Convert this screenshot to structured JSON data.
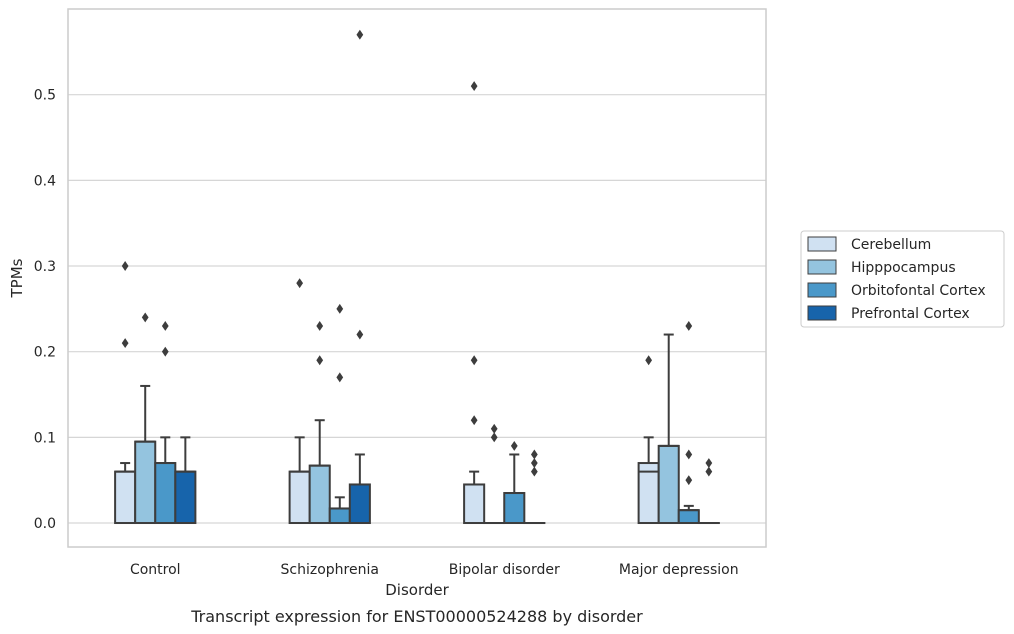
{
  "chart_data": {
    "type": "bar",
    "xlabel": "Disorder",
    "ylabel": "TPMs",
    "caption": "Transcript expression for ENST00000524288 by disorder",
    "categories": [
      "Control",
      "Schizophrenia",
      "Bipolar disorder",
      "Major depression"
    ],
    "ylim": [
      -0.028,
      0.6
    ],
    "yticks": [
      0.0,
      0.1,
      0.2,
      0.3,
      0.4,
      0.5
    ],
    "ytick_labels": [
      "0.0",
      "0.1",
      "0.2",
      "0.3",
      "0.4",
      "0.5"
    ],
    "grid": "horizontal",
    "legend_position": "right",
    "series": [
      {
        "name": "Cerebellum",
        "color": "#d0e1f2",
        "boxes": [
          {
            "q1": 0.0,
            "median": 0.06,
            "q3": 0.06,
            "whisker_low": 0.0,
            "whisker_high": 0.07,
            "outliers": [
              0.21,
              0.3
            ]
          },
          {
            "q1": 0.0,
            "median": 0.06,
            "q3": 0.06,
            "whisker_low": 0.0,
            "whisker_high": 0.1,
            "outliers": [
              0.28
            ]
          },
          {
            "q1": 0.0,
            "median": 0.045,
            "q3": 0.045,
            "whisker_low": 0.0,
            "whisker_high": 0.06,
            "outliers": [
              0.12,
              0.19,
              0.51
            ]
          },
          {
            "q1": 0.0,
            "median": 0.06,
            "q3": 0.07,
            "whisker_low": 0.0,
            "whisker_high": 0.1,
            "outliers": [
              0.19
            ]
          }
        ]
      },
      {
        "name": "Hipppocampus",
        "color": "#94c4df",
        "boxes": [
          {
            "q1": 0.0,
            "median": 0.095,
            "q3": 0.095,
            "whisker_low": 0.0,
            "whisker_high": 0.16,
            "outliers": [
              0.24
            ]
          },
          {
            "q1": 0.0,
            "median": 0.067,
            "q3": 0.067,
            "whisker_low": 0.0,
            "whisker_high": 0.12,
            "outliers": [
              0.19,
              0.23
            ]
          },
          {
            "q1": 0.0,
            "median": 0.0,
            "q3": 0.0,
            "whisker_low": 0.0,
            "whisker_high": 0.0,
            "outliers": [
              0.1,
              0.11
            ]
          },
          {
            "q1": 0.0,
            "median": 0.09,
            "q3": 0.09,
            "whisker_low": 0.0,
            "whisker_high": 0.22,
            "outliers": []
          }
        ]
      },
      {
        "name": "Orbitofontal Cortex",
        "color": "#4a98c9",
        "boxes": [
          {
            "q1": 0.0,
            "median": 0.07,
            "q3": 0.07,
            "whisker_low": 0.0,
            "whisker_high": 0.1,
            "outliers": [
              0.2,
              0.23
            ]
          },
          {
            "q1": 0.0,
            "median": 0.017,
            "q3": 0.017,
            "whisker_low": 0.0,
            "whisker_high": 0.03,
            "outliers": [
              0.17,
              0.25
            ]
          },
          {
            "q1": 0.0,
            "median": 0.035,
            "q3": 0.035,
            "whisker_low": 0.0,
            "whisker_high": 0.08,
            "outliers": [
              0.09
            ]
          },
          {
            "q1": 0.0,
            "median": 0.015,
            "q3": 0.015,
            "whisker_low": 0.0,
            "whisker_high": 0.02,
            "outliers": [
              0.05,
              0.08,
              0.23
            ]
          }
        ]
      },
      {
        "name": "Prefrontal Cortex",
        "color": "#1764ab",
        "boxes": [
          {
            "q1": 0.0,
            "median": 0.06,
            "q3": 0.06,
            "whisker_low": 0.0,
            "whisker_high": 0.1,
            "outliers": []
          },
          {
            "q1": 0.0,
            "median": 0.045,
            "q3": 0.045,
            "whisker_low": 0.0,
            "whisker_high": 0.08,
            "outliers": [
              0.22,
              0.57
            ]
          },
          {
            "q1": 0.0,
            "median": 0.0,
            "q3": 0.0,
            "whisker_low": 0.0,
            "whisker_high": 0.0,
            "outliers": [
              0.06,
              0.07,
              0.08
            ]
          },
          {
            "q1": 0.0,
            "median": 0.0,
            "q3": 0.0,
            "whisker_low": 0.0,
            "whisker_high": 0.0,
            "outliers": [
              0.06,
              0.07
            ]
          }
        ]
      }
    ]
  }
}
